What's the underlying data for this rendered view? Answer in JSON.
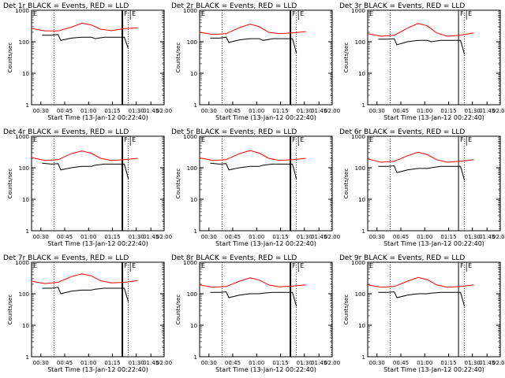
{
  "chart_data": [
    {
      "type": "line",
      "title": "Det 1r BLACK = Events, RED = LLD",
      "xlabel": "Start Time (13-Jan-12 00:22:40)",
      "ylabel": "Counts/sec",
      "x": [
        "00:30",
        "00:45",
        "01:00",
        "01:15",
        "01:30",
        "01:45",
        "02:00"
      ],
      "yscale": "log",
      "ylim": [
        1,
        1000
      ],
      "yticks": [
        "1",
        "10",
        "100",
        "1000"
      ],
      "markers": [
        "F",
        "E"
      ],
      "series": [
        {
          "color": "#ff0000",
          "values": [
            [
              0,
              265
            ],
            [
              10,
              220
            ],
            [
              20,
              220
            ],
            [
              30,
              290
            ],
            [
              38,
              390
            ],
            [
              45,
              340
            ],
            [
              52,
              250
            ],
            [
              60,
              225
            ],
            [
              70,
              260
            ],
            [
              80,
              275
            ]
          ]
        },
        {
          "color": "#000000",
          "values": [
            [
              8,
              160
            ],
            [
              15,
              160
            ],
            [
              20,
              170
            ],
            [
              22,
              110
            ],
            [
              30,
              130
            ],
            [
              38,
              140
            ],
            [
              45,
              140
            ],
            [
              48,
              125
            ],
            [
              55,
              140
            ],
            [
              63,
              140
            ],
            [
              70,
              140
            ],
            [
              73,
              60
            ]
          ]
        }
      ]
    },
    {
      "type": "line",
      "title": "Det 2r BLACK = Events, RED = LLD",
      "xlabel": "Start Time (13-Jan-12 00:22:40)",
      "ylabel": "Counts/sec",
      "x": [
        "00:30",
        "00:45",
        "01:00",
        "01:15",
        "01:30",
        "01:45",
        "02:00"
      ],
      "yscale": "log",
      "ylim": [
        1,
        1000
      ],
      "yticks": [
        "1",
        "10",
        "100",
        "1000"
      ],
      "markers": [
        "F",
        "E"
      ],
      "series": [
        {
          "color": "#ff0000",
          "values": [
            [
              0,
              200
            ],
            [
              10,
              170
            ],
            [
              20,
              180
            ],
            [
              30,
              280
            ],
            [
              38,
              360
            ],
            [
              45,
              300
            ],
            [
              52,
              200
            ],
            [
              60,
              180
            ],
            [
              70,
              190
            ],
            [
              80,
              210
            ]
          ]
        },
        {
          "color": "#000000",
          "values": [
            [
              8,
              130
            ],
            [
              15,
              130
            ],
            [
              20,
              140
            ],
            [
              22,
              95
            ],
            [
              30,
              115
            ],
            [
              38,
              125
            ],
            [
              45,
              125
            ],
            [
              48,
              110
            ],
            [
              55,
              125
            ],
            [
              63,
              125
            ],
            [
              70,
              125
            ],
            [
              73,
              45
            ]
          ]
        }
      ]
    },
    {
      "type": "line",
      "title": "Det 3r BLACK = Events, RED = LLD",
      "xlabel": "Start Time (13-Jan-12 00:22:40)",
      "ylabel": "Counts/sec",
      "x": [
        "00:30",
        "00:45",
        "01:00",
        "01:15",
        "01:30",
        "01:45",
        "02:00"
      ],
      "yscale": "log",
      "ylim": [
        1,
        1000
      ],
      "yticks": [
        "1",
        "10",
        "100",
        "1000"
      ],
      "markers": [
        "F",
        "E"
      ],
      "series": [
        {
          "color": "#ff0000",
          "values": [
            [
              0,
              180
            ],
            [
              10,
              150
            ],
            [
              20,
              160
            ],
            [
              30,
              270
            ],
            [
              38,
              380
            ],
            [
              45,
              320
            ],
            [
              52,
              190
            ],
            [
              60,
              150
            ],
            [
              70,
              160
            ],
            [
              80,
              190
            ]
          ]
        },
        {
          "color": "#000000",
          "values": [
            [
              8,
              120
            ],
            [
              15,
              120
            ],
            [
              20,
              125
            ],
            [
              22,
              80
            ],
            [
              30,
              100
            ],
            [
              38,
              110
            ],
            [
              45,
              110
            ],
            [
              48,
              100
            ],
            [
              55,
              110
            ],
            [
              63,
              110
            ],
            [
              70,
              110
            ],
            [
              73,
              40
            ]
          ]
        }
      ]
    },
    {
      "type": "line",
      "title": "Det 4r BLACK = Events, RED = LLD",
      "xlabel": "Start Time (13-Jan-12 00:22:40)",
      "ylabel": "Counts/sec",
      "x": [
        "00:30",
        "00:45",
        "01:00",
        "01:15",
        "01:30",
        "01:45",
        "02:00"
      ],
      "yscale": "log",
      "ylim": [
        1,
        1000
      ],
      "yticks": [
        "1",
        "10",
        "100",
        "1000"
      ],
      "markers": [
        "F",
        "E"
      ],
      "series": [
        {
          "color": "#ff0000",
          "values": [
            [
              0,
              210
            ],
            [
              10,
              170
            ],
            [
              20,
              180
            ],
            [
              30,
              280
            ],
            [
              38,
              340
            ],
            [
              45,
              290
            ],
            [
              52,
              200
            ],
            [
              60,
              170
            ],
            [
              70,
              180
            ],
            [
              80,
              200
            ]
          ]
        },
        {
          "color": "#000000",
          "values": [
            [
              8,
              140
            ],
            [
              15,
              130
            ],
            [
              20,
              135
            ],
            [
              22,
              85
            ],
            [
              30,
              100
            ],
            [
              38,
              110
            ],
            [
              45,
              110
            ],
            [
              48,
              120
            ],
            [
              55,
              130
            ],
            [
              63,
              130
            ],
            [
              70,
              130
            ],
            [
              73,
              45
            ]
          ]
        }
      ]
    },
    {
      "type": "line",
      "title": "Det 5r BLACK = Events, RED = LLD",
      "xlabel": "Start Time (13-Jan-12 00:22:40)",
      "ylabel": "Counts/sec",
      "x": [
        "00:30",
        "00:45",
        "01:00",
        "01:15",
        "01:30",
        "01:45",
        "02:00"
      ],
      "yscale": "log",
      "ylim": [
        1,
        1000
      ],
      "yticks": [
        "1",
        "10",
        "100",
        "1000"
      ],
      "markers": [
        "F",
        "E"
      ],
      "series": [
        {
          "color": "#ff0000",
          "values": [
            [
              0,
              205
            ],
            [
              10,
              170
            ],
            [
              20,
              180
            ],
            [
              30,
              280
            ],
            [
              38,
              350
            ],
            [
              45,
              290
            ],
            [
              52,
              200
            ],
            [
              60,
              170
            ],
            [
              70,
              180
            ],
            [
              80,
              200
            ]
          ]
        },
        {
          "color": "#000000",
          "values": [
            [
              8,
              140
            ],
            [
              15,
              130
            ],
            [
              20,
              135
            ],
            [
              22,
              85
            ],
            [
              30,
              100
            ],
            [
              38,
              110
            ],
            [
              45,
              110
            ],
            [
              48,
              120
            ],
            [
              55,
              130
            ],
            [
              63,
              130
            ],
            [
              70,
              130
            ],
            [
              73,
              45
            ]
          ]
        }
      ]
    },
    {
      "type": "line",
      "title": "Det 6r BLACK = Events, RED = LLD",
      "xlabel": "Start Time (13-Jan-12 00:22:40)",
      "ylabel": "Counts/sec",
      "x": [
        "00:30",
        "00:45",
        "01:00",
        "01:15",
        "01:30",
        "01:45",
        "02:00"
      ],
      "yscale": "log",
      "ylim": [
        1,
        1000
      ],
      "yticks": [
        "1",
        "10",
        "100",
        "1000"
      ],
      "markers": [
        "F",
        "E"
      ],
      "series": [
        {
          "color": "#ff0000",
          "values": [
            [
              0,
              190
            ],
            [
              10,
              150
            ],
            [
              20,
              160
            ],
            [
              30,
              240
            ],
            [
              38,
              310
            ],
            [
              45,
              260
            ],
            [
              52,
              180
            ],
            [
              60,
              150
            ],
            [
              70,
              160
            ],
            [
              80,
              180
            ]
          ]
        },
        {
          "color": "#000000",
          "values": [
            [
              8,
              110
            ],
            [
              15,
              110
            ],
            [
              20,
              115
            ],
            [
              22,
              70
            ],
            [
              30,
              85
            ],
            [
              38,
              95
            ],
            [
              45,
              95
            ],
            [
              48,
              100
            ],
            [
              55,
              110
            ],
            [
              63,
              110
            ],
            [
              70,
              110
            ],
            [
              73,
              40
            ]
          ]
        }
      ]
    },
    {
      "type": "line",
      "title": "Det 7r BLACK = Events, RED = LLD",
      "xlabel": "Start Time (13-Jan-12 00:22:40)",
      "ylabel": "Counts/sec",
      "x": [
        "00:30",
        "00:45",
        "01:00",
        "01:15",
        "01:30",
        "01:45",
        "02:00"
      ],
      "yscale": "log",
      "ylim": [
        1,
        1000
      ],
      "yticks": [
        "1",
        "10",
        "100",
        "1000"
      ],
      "markers": [
        "F",
        "E"
      ],
      "series": [
        {
          "color": "#ff0000",
          "values": [
            [
              0,
              250
            ],
            [
              10,
              210
            ],
            [
              20,
              230
            ],
            [
              30,
              350
            ],
            [
              38,
              430
            ],
            [
              45,
              370
            ],
            [
              52,
              260
            ],
            [
              60,
              220
            ],
            [
              70,
              230
            ],
            [
              80,
              260
            ]
          ]
        },
        {
          "color": "#000000",
          "values": [
            [
              8,
              150
            ],
            [
              15,
              150
            ],
            [
              20,
              160
            ],
            [
              22,
              100
            ],
            [
              30,
              120
            ],
            [
              38,
              130
            ],
            [
              45,
              130
            ],
            [
              48,
              140
            ],
            [
              55,
              150
            ],
            [
              63,
              150
            ],
            [
              70,
              150
            ],
            [
              73,
              55
            ]
          ]
        }
      ]
    },
    {
      "type": "line",
      "title": "Det 8r BLACK = Events, RED = LLD",
      "xlabel": "Start Time (13-Jan-12 00:22:40)",
      "ylabel": "Counts/sec",
      "x": [
        "00:30",
        "00:45",
        "01:00",
        "01:15",
        "01:30",
        "01:45",
        "02:00"
      ],
      "yscale": "log",
      "ylim": [
        1,
        1000
      ],
      "yticks": [
        "1",
        "10",
        "100",
        "1000"
      ],
      "markers": [
        "F",
        "E"
      ],
      "series": [
        {
          "color": "#ff0000",
          "values": [
            [
              0,
              190
            ],
            [
              10,
              160
            ],
            [
              20,
              170
            ],
            [
              30,
              250
            ],
            [
              38,
              320
            ],
            [
              45,
              270
            ],
            [
              52,
              190
            ],
            [
              60,
              165
            ],
            [
              70,
              175
            ],
            [
              80,
              190
            ]
          ]
        },
        {
          "color": "#000000",
          "values": [
            [
              8,
              110
            ],
            [
              15,
              110
            ],
            [
              20,
              115
            ],
            [
              22,
              75
            ],
            [
              30,
              90
            ],
            [
              38,
              100
            ],
            [
              45,
              100
            ],
            [
              48,
              105
            ],
            [
              55,
              110
            ],
            [
              63,
              110
            ],
            [
              70,
              110
            ],
            [
              73,
              40
            ]
          ]
        }
      ]
    },
    {
      "type": "line",
      "title": "Det 9r BLACK = Events, RED = LLD",
      "xlabel": "Start Time (13-Jan-12 00:22:40)",
      "ylabel": "Counts/sec",
      "x": [
        "00:30",
        "00:45",
        "01:00",
        "01:15",
        "01:30",
        "01:45",
        "02:00"
      ],
      "yscale": "log",
      "ylim": [
        1,
        1000
      ],
      "yticks": [
        "1",
        "10",
        "100",
        "1000"
      ],
      "markers": [
        "F",
        "E"
      ],
      "series": [
        {
          "color": "#ff0000",
          "values": [
            [
              0,
              190
            ],
            [
              10,
              160
            ],
            [
              20,
              170
            ],
            [
              30,
              250
            ],
            [
              38,
              330
            ],
            [
              45,
              280
            ],
            [
              52,
              190
            ],
            [
              60,
              160
            ],
            [
              70,
              170
            ],
            [
              80,
              190
            ]
          ]
        },
        {
          "color": "#000000",
          "values": [
            [
              8,
              110
            ],
            [
              15,
              110
            ],
            [
              20,
              115
            ],
            [
              22,
              75
            ],
            [
              30,
              90
            ],
            [
              38,
              100
            ],
            [
              45,
              100
            ],
            [
              48,
              105
            ],
            [
              55,
              110
            ],
            [
              63,
              110
            ],
            [
              70,
              110
            ],
            [
              73,
              40
            ]
          ]
        }
      ]
    }
  ]
}
